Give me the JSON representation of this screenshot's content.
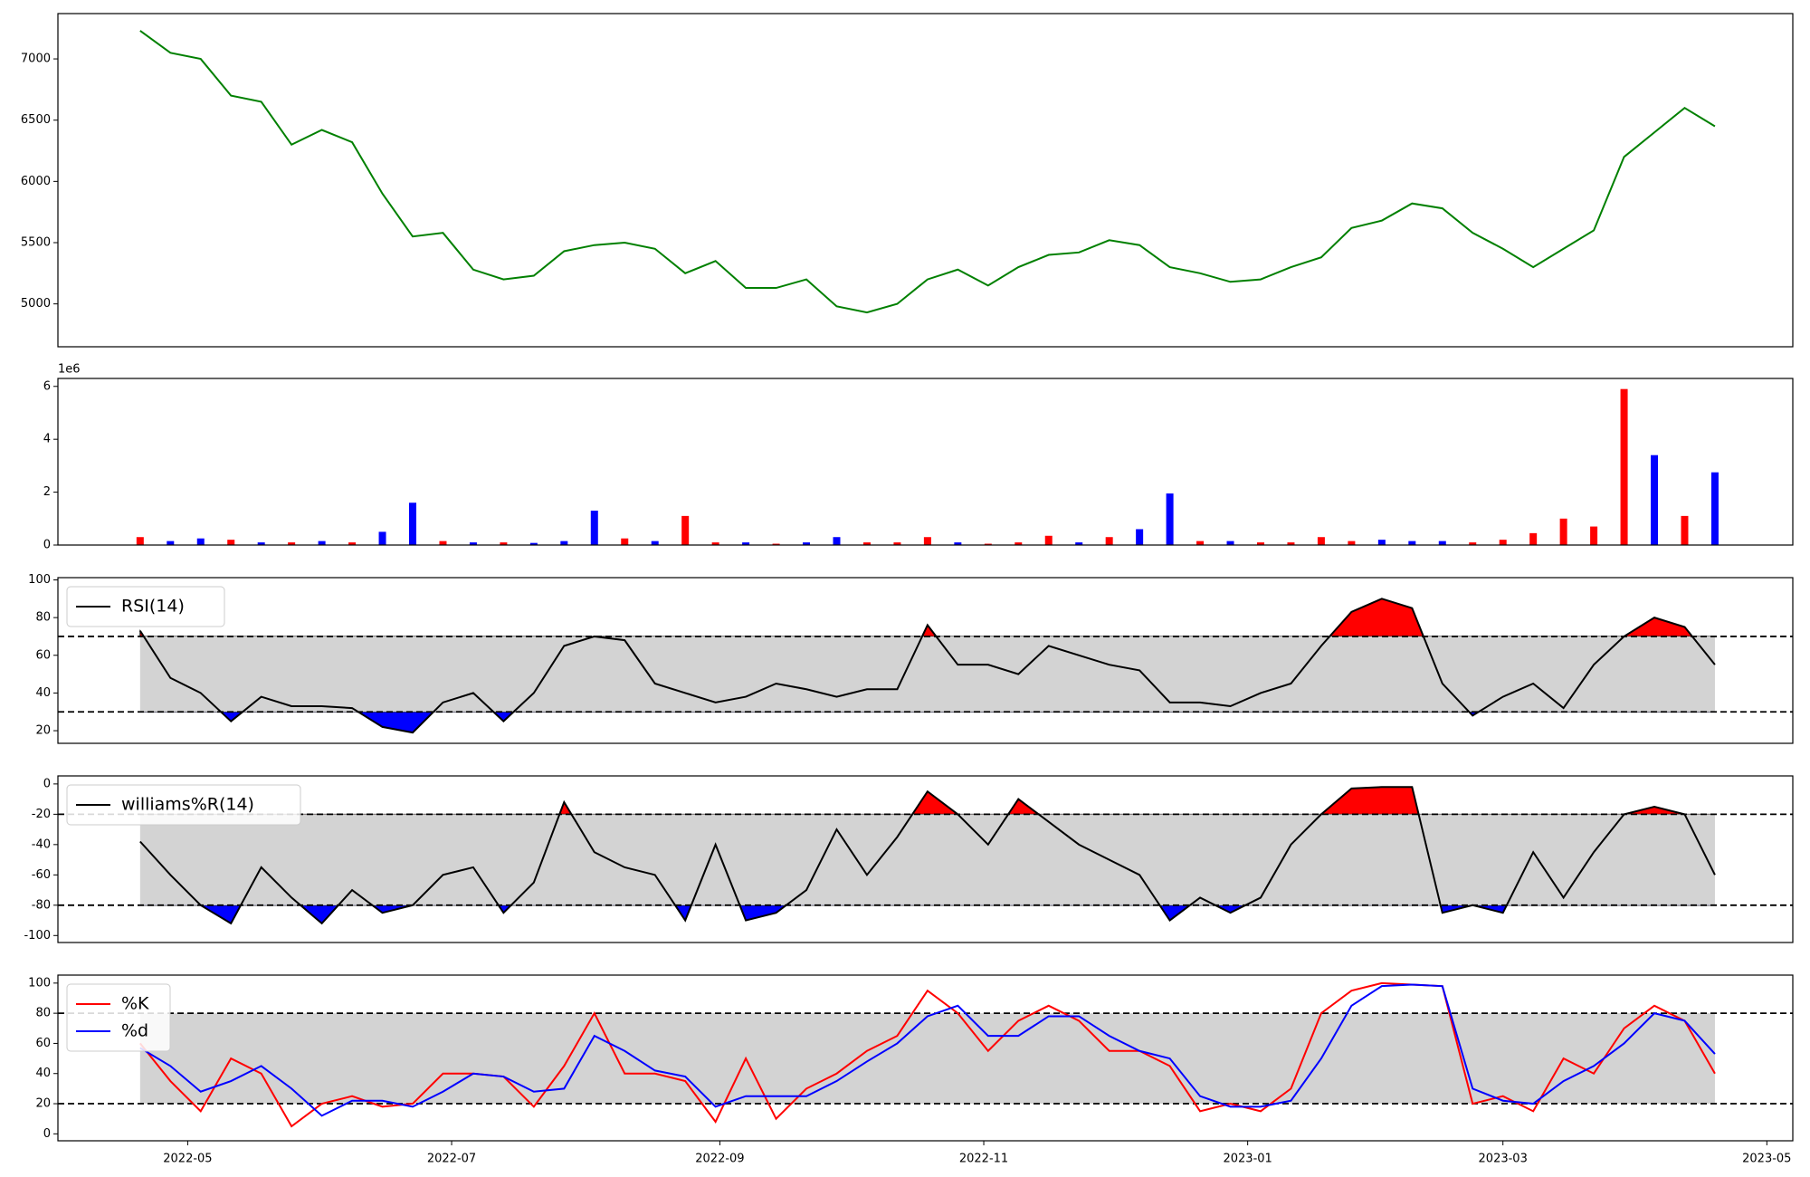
{
  "chart_data": [
    {
      "type": "line",
      "x": [
        "2022-04-20",
        "2022-04-27",
        "2022-05-04",
        "2022-05-11",
        "2022-05-18",
        "2022-05-25",
        "2022-06-01",
        "2022-06-08",
        "2022-06-15",
        "2022-06-22",
        "2022-06-29",
        "2022-07-06",
        "2022-07-13",
        "2022-07-20",
        "2022-07-27",
        "2022-08-03",
        "2022-08-10",
        "2022-08-17",
        "2022-08-24",
        "2022-08-31",
        "2022-09-07",
        "2022-09-14",
        "2022-09-21",
        "2022-09-28",
        "2022-10-05",
        "2022-10-12",
        "2022-10-19",
        "2022-10-26",
        "2022-11-02",
        "2022-11-09",
        "2022-11-16",
        "2022-11-23",
        "2022-11-30",
        "2022-12-07",
        "2022-12-14",
        "2022-12-21",
        "2022-12-28",
        "2023-01-04",
        "2023-01-11",
        "2023-01-18",
        "2023-01-25",
        "2023-02-01",
        "2023-02-08",
        "2023-02-15",
        "2023-02-22",
        "2023-03-01",
        "2023-03-08",
        "2023-03-15",
        "2023-03-22",
        "2023-03-29",
        "2023-04-05",
        "2023-04-12",
        "2023-04-19"
      ],
      "series": [
        {
          "color": "green",
          "values": [
            7230,
            7050,
            7000,
            6700,
            6650,
            6300,
            6420,
            6320,
            5900,
            5550,
            5580,
            5280,
            5200,
            5230,
            5430,
            5480,
            5500,
            5450,
            5250,
            5350,
            5130,
            5130,
            5200,
            4980,
            4930,
            5000,
            5200,
            5280,
            5150,
            5300,
            5400,
            5420,
            5520,
            5480,
            5300,
            5250,
            5180,
            5200,
            5300,
            5380,
            5620,
            5680,
            5820,
            5780,
            5580,
            5450,
            5300,
            5450,
            5600,
            6200,
            6400,
            6600,
            6450
          ]
        }
      ],
      "xlim": [
        "2022-04-01",
        "2023-05-07"
      ],
      "ylim": [
        4650,
        7370
      ],
      "yticks": [
        5000,
        5500,
        6000,
        6500,
        7000
      ]
    },
    {
      "type": "bar",
      "x": [
        "2022-04-20",
        "2022-04-27",
        "2022-05-04",
        "2022-05-11",
        "2022-05-18",
        "2022-05-25",
        "2022-06-01",
        "2022-06-08",
        "2022-06-15",
        "2022-06-22",
        "2022-06-29",
        "2022-07-06",
        "2022-07-13",
        "2022-07-20",
        "2022-07-27",
        "2022-08-03",
        "2022-08-10",
        "2022-08-17",
        "2022-08-24",
        "2022-08-31",
        "2022-09-07",
        "2022-09-14",
        "2022-09-21",
        "2022-09-28",
        "2022-10-05",
        "2022-10-12",
        "2022-10-19",
        "2022-10-26",
        "2022-11-02",
        "2022-11-09",
        "2022-11-16",
        "2022-11-23",
        "2022-11-30",
        "2022-12-07",
        "2022-12-14",
        "2022-12-21",
        "2022-12-28",
        "2023-01-04",
        "2023-01-11",
        "2023-01-18",
        "2023-01-25",
        "2023-02-01",
        "2023-02-08",
        "2023-02-15",
        "2023-02-22",
        "2023-03-01",
        "2023-03-08",
        "2023-03-15",
        "2023-03-22",
        "2023-03-29",
        "2023-04-05",
        "2023-04-12",
        "2023-04-19"
      ],
      "values": [
        0.3,
        0.15,
        0.25,
        0.2,
        0.1,
        0.1,
        0.15,
        0.1,
        0.5,
        1.6,
        0.15,
        0.1,
        0.1,
        0.08,
        0.15,
        1.3,
        0.25,
        0.15,
        1.1,
        0.1,
        0.1,
        0.05,
        0.1,
        0.3,
        0.1,
        0.1,
        0.3,
        0.1,
        0.05,
        0.1,
        0.35,
        0.1,
        0.3,
        0.6,
        1.95,
        0.15,
        0.15,
        0.1,
        0.1,
        0.3,
        0.15,
        0.2,
        0.15,
        0.15,
        0.1,
        0.2,
        0.45,
        1.0,
        0.7,
        5.9,
        3.4,
        1.1,
        2.75
      ],
      "colors": [
        "red",
        "blue",
        "blue",
        "red",
        "blue",
        "red",
        "blue",
        "red",
        "blue",
        "blue",
        "red",
        "blue",
        "red",
        "blue",
        "blue",
        "blue",
        "red",
        "blue",
        "red",
        "red",
        "blue",
        "red",
        "blue",
        "blue",
        "red",
        "red",
        "red",
        "blue",
        "red",
        "red",
        "red",
        "blue",
        "red",
        "blue",
        "blue",
        "red",
        "blue",
        "red",
        "red",
        "red",
        "red",
        "blue",
        "blue",
        "blue",
        "red",
        "red",
        "red",
        "red",
        "red",
        "red",
        "blue",
        "red",
        "blue"
      ],
      "y_offset_label": "1e6",
      "xlim": [
        "2022-04-01",
        "2023-05-07"
      ],
      "ylim": [
        0,
        6.3
      ],
      "yticks": [
        0,
        2,
        4,
        6
      ]
    },
    {
      "type": "line",
      "x": [
        "2022-04-20",
        "2022-04-27",
        "2022-05-04",
        "2022-05-11",
        "2022-05-18",
        "2022-05-25",
        "2022-06-01",
        "2022-06-08",
        "2022-06-15",
        "2022-06-22",
        "2022-06-29",
        "2022-07-06",
        "2022-07-13",
        "2022-07-20",
        "2022-07-27",
        "2022-08-03",
        "2022-08-10",
        "2022-08-17",
        "2022-08-24",
        "2022-08-31",
        "2022-09-07",
        "2022-09-14",
        "2022-09-21",
        "2022-09-28",
        "2022-10-05",
        "2022-10-12",
        "2022-10-19",
        "2022-10-26",
        "2022-11-02",
        "2022-11-09",
        "2022-11-16",
        "2022-11-23",
        "2022-11-30",
        "2022-12-07",
        "2022-12-14",
        "2022-12-21",
        "2022-12-28",
        "2023-01-04",
        "2023-01-11",
        "2023-01-18",
        "2023-01-25",
        "2023-02-01",
        "2023-02-08",
        "2023-02-15",
        "2023-02-22",
        "2023-03-01",
        "2023-03-08",
        "2023-03-15",
        "2023-03-22",
        "2023-03-29",
        "2023-04-05",
        "2023-04-12",
        "2023-04-19"
      ],
      "series": [
        {
          "name": "RSI(14)",
          "color": "black",
          "values": [
            73,
            48,
            40,
            25,
            38,
            33,
            33,
            32,
            22,
            19,
            35,
            40,
            25,
            40,
            65,
            70,
            68,
            45,
            40,
            35,
            38,
            45,
            42,
            38,
            42,
            42,
            76,
            55,
            55,
            50,
            65,
            60,
            55,
            52,
            35,
            35,
            33,
            40,
            45,
            65,
            83,
            90,
            85,
            45,
            28,
            38,
            45,
            32,
            55,
            70,
            80,
            75,
            55
          ]
        }
      ],
      "hlines": [
        30,
        70
      ],
      "band_color": "lightgray",
      "above_color": "red",
      "below_color": "blue",
      "xlim": [
        "2022-04-01",
        "2023-05-07"
      ],
      "ylim": [
        13.3,
        101.2
      ],
      "yticks": [
        20,
        40,
        60,
        80,
        100
      ]
    },
    {
      "type": "line",
      "x": [
        "2022-04-20",
        "2022-04-27",
        "2022-05-04",
        "2022-05-11",
        "2022-05-18",
        "2022-05-25",
        "2022-06-01",
        "2022-06-08",
        "2022-06-15",
        "2022-06-22",
        "2022-06-29",
        "2022-07-06",
        "2022-07-13",
        "2022-07-20",
        "2022-07-27",
        "2022-08-03",
        "2022-08-10",
        "2022-08-17",
        "2022-08-24",
        "2022-08-31",
        "2022-09-07",
        "2022-09-14",
        "2022-09-21",
        "2022-09-28",
        "2022-10-05",
        "2022-10-12",
        "2022-10-19",
        "2022-10-26",
        "2022-11-02",
        "2022-11-09",
        "2022-11-16",
        "2022-11-23",
        "2022-11-30",
        "2022-12-07",
        "2022-12-14",
        "2022-12-21",
        "2022-12-28",
        "2023-01-04",
        "2023-01-11",
        "2023-01-18",
        "2023-01-25",
        "2023-02-01",
        "2023-02-08",
        "2023-02-15",
        "2023-02-22",
        "2023-03-01",
        "2023-03-08",
        "2023-03-15",
        "2023-03-22",
        "2023-03-29",
        "2023-04-05",
        "2023-04-12",
        "2023-04-19"
      ],
      "series": [
        {
          "name": "williams%R(14)",
          "color": "black",
          "values": [
            -38,
            -60,
            -80,
            -92,
            -55,
            -75,
            -92,
            -70,
            -85,
            -80,
            -60,
            -55,
            -85,
            -65,
            -12,
            -45,
            -55,
            -60,
            -90,
            -40,
            -90,
            -85,
            -70,
            -30,
            -60,
            -35,
            -5,
            -20,
            -40,
            -10,
            -25,
            -40,
            -50,
            -60,
            -90,
            -75,
            -85,
            -75,
            -40,
            -20,
            -3,
            -2,
            -2,
            -85,
            -80,
            -85,
            -45,
            -75,
            -45,
            -20,
            -15,
            -20,
            -60
          ]
        }
      ],
      "hlines": [
        -80,
        -20
      ],
      "band_color": "lightgray",
      "above_color": "red",
      "below_color": "blue",
      "xlim": [
        "2022-04-01",
        "2023-05-07"
      ],
      "ylim": [
        -104.6,
        5.3
      ],
      "yticks": [
        -100,
        -80,
        -60,
        -40,
        -20,
        0
      ]
    },
    {
      "type": "line",
      "x": [
        "2022-04-20",
        "2022-04-27",
        "2022-05-04",
        "2022-05-11",
        "2022-05-18",
        "2022-05-25",
        "2022-06-01",
        "2022-06-08",
        "2022-06-15",
        "2022-06-22",
        "2022-06-29",
        "2022-07-06",
        "2022-07-13",
        "2022-07-20",
        "2022-07-27",
        "2022-08-03",
        "2022-08-10",
        "2022-08-17",
        "2022-08-24",
        "2022-08-31",
        "2022-09-07",
        "2022-09-14",
        "2022-09-21",
        "2022-09-28",
        "2022-10-05",
        "2022-10-12",
        "2022-10-19",
        "2022-10-26",
        "2022-11-02",
        "2022-11-09",
        "2022-11-16",
        "2022-11-23",
        "2022-11-30",
        "2022-12-07",
        "2022-12-14",
        "2022-12-21",
        "2022-12-28",
        "2023-01-04",
        "2023-01-11",
        "2023-01-18",
        "2023-01-25",
        "2023-02-01",
        "2023-02-08",
        "2023-02-15",
        "2023-02-22",
        "2023-03-01",
        "2023-03-08",
        "2023-03-15",
        "2023-03-22",
        "2023-03-29",
        "2023-04-05",
        "2023-04-12",
        "2023-04-19"
      ],
      "series": [
        {
          "name": "%K",
          "color": "red",
          "values": [
            60,
            35,
            15,
            50,
            40,
            5,
            20,
            25,
            18,
            20,
            40,
            40,
            38,
            18,
            45,
            80,
            40,
            40,
            35,
            8,
            50,
            10,
            30,
            40,
            55,
            65,
            95,
            80,
            55,
            75,
            85,
            75,
            55,
            55,
            45,
            15,
            20,
            15,
            30,
            80,
            95,
            100,
            99,
            98,
            20,
            25,
            15,
            50,
            40,
            70,
            85,
            75,
            40
          ]
        },
        {
          "name": "%d",
          "color": "blue",
          "values": [
            57,
            45,
            28,
            35,
            45,
            30,
            12,
            22,
            22,
            18,
            28,
            40,
            38,
            28,
            30,
            65,
            55,
            42,
            38,
            18,
            25,
            25,
            25,
            35,
            48,
            60,
            78,
            85,
            65,
            65,
            78,
            78,
            65,
            55,
            50,
            25,
            18,
            18,
            22,
            50,
            85,
            98,
            99,
            98,
            30,
            22,
            20,
            35,
            45,
            60,
            80,
            75,
            53
          ]
        }
      ],
      "hlines": [
        20,
        80
      ],
      "band_color": "lightgray",
      "xlim": [
        "2022-04-01",
        "2023-05-07"
      ],
      "ylim": [
        -4.6,
        105.3
      ],
      "yticks": [
        0,
        20,
        40,
        60,
        80,
        100
      ],
      "xticks": [
        {
          "value": "2022-05-01",
          "label": "2022-05"
        },
        {
          "value": "2022-07-01",
          "label": "2022-07"
        },
        {
          "value": "2022-09-01",
          "label": "2022-09"
        },
        {
          "value": "2022-11-01",
          "label": "2022-11"
        },
        {
          "value": "2023-01-01",
          "label": "2023-01"
        },
        {
          "value": "2023-03-01",
          "label": "2023-03"
        },
        {
          "value": "2023-05-01",
          "label": "2023-05"
        }
      ]
    }
  ]
}
